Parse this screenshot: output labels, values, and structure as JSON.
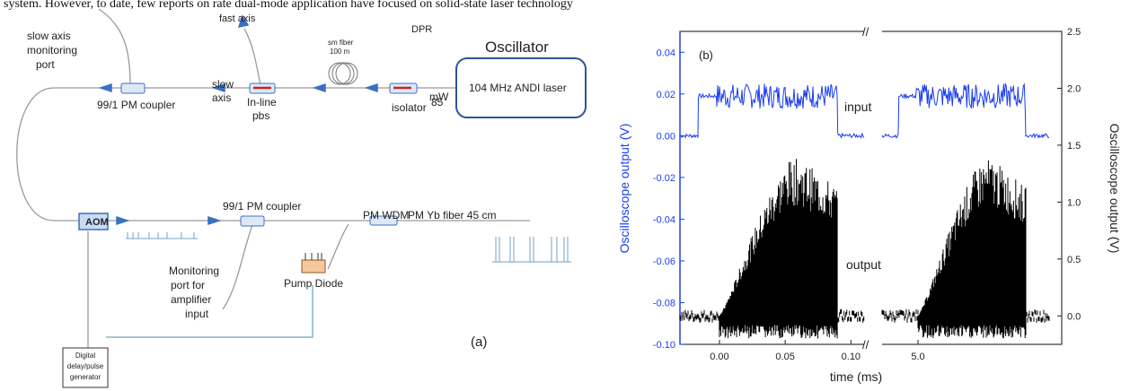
{
  "top_text": "system. However, to date, few reports on rate dual-mode application have focused on solid-state laser technology",
  "watermark": "DPR",
  "panel_a": {
    "panel_label": "(a)",
    "oscillator_title": "Oscillator",
    "oscillator_box": "104 MHz ANDI laser",
    "power_value": "85",
    "power_unit": "mW",
    "isolator": "isolator",
    "fiber_line1": "sm fiber",
    "fiber_line2": "100 m",
    "fast_axis": "fast axis",
    "slow_axis_line1": "slow",
    "slow_axis_line2": "axis",
    "pbs_line1": "In-line",
    "pbs_line2": "pbs",
    "pm_coupler_top": "99/1 PM coupler",
    "monitor_top_1": "slow axis",
    "monitor_top_2": "monitoring",
    "monitor_top_3": "port",
    "aom": "AOM",
    "pm_coupler_mid": "99/1 PM coupler",
    "pm_wdm": "PM WDM",
    "yb_fiber": "PM Yb fiber 45 cm",
    "pump_diode": "Pump Diode",
    "monitor_amp_1": "Monitoring",
    "monitor_amp_2": "port for",
    "monitor_amp_3": "amplifier",
    "monitor_amp_4": "input",
    "delay_1": "Digital",
    "delay_2": "delay/pulse",
    "delay_3": "generator"
  },
  "colors": {
    "fiber": "#9a9a9a",
    "arrow_blue": "#3b6fc4",
    "input_trace": "#1a3df0",
    "output_trace": "#000000",
    "pbs_arrow": "#cc2222",
    "pump_body": "#f4c89a",
    "box_fill": "#dde8f7"
  },
  "chart_data": {
    "type": "line",
    "panel_label": "(b)",
    "title": "",
    "xlabel": "time (ms)",
    "ylabel_left": "Oscilloscope output (V)",
    "ylabel_right": "Oscilloscope output (V)",
    "ylim_left": [
      -0.1,
      0.05
    ],
    "ylim_right": [
      -0.25,
      2.5
    ],
    "yticks_left": [
      "0.04",
      "0.02",
      "0.00",
      "-0.02",
      "-0.04",
      "-0.06",
      "-0.08",
      "-0.10"
    ],
    "yticks_right": [
      "2.5",
      "2.0",
      "1.5",
      "1.0",
      "0.5",
      "0.0"
    ],
    "xticks": [
      "0.00",
      "0.05",
      "0.10",
      "5.0"
    ],
    "axis_break": "//",
    "annotations": [
      "input",
      "output"
    ],
    "series": [
      {
        "name": "input",
        "axis": "left",
        "color": "#1a3df0",
        "segments": [
          {
            "x_start": -0.03,
            "x_end": -0.016,
            "level": 0.0,
            "noise": 0.001
          },
          {
            "x_start": -0.016,
            "x_end": -0.002,
            "level": 0.019,
            "noise": 0.001
          },
          {
            "x_start": -0.002,
            "x_end": 0.09,
            "level": 0.019,
            "noise": 0.006
          },
          {
            "x_start": 0.09,
            "x_end": 0.11,
            "level": 0.0,
            "noise": 0.001
          }
        ]
      },
      {
        "name": "output",
        "axis": "right",
        "color": "#000000",
        "segments": [
          {
            "x_start": -0.03,
            "x_end": 0.0,
            "level": 0.0,
            "noise": 0.04
          },
          {
            "x_start": 0.0,
            "x_end": 0.09,
            "peak": 1.45,
            "min": -0.2
          },
          {
            "x_start": 0.09,
            "x_end": 0.11,
            "level": 0.0,
            "noise": 0.04
          }
        ]
      }
    ]
  }
}
